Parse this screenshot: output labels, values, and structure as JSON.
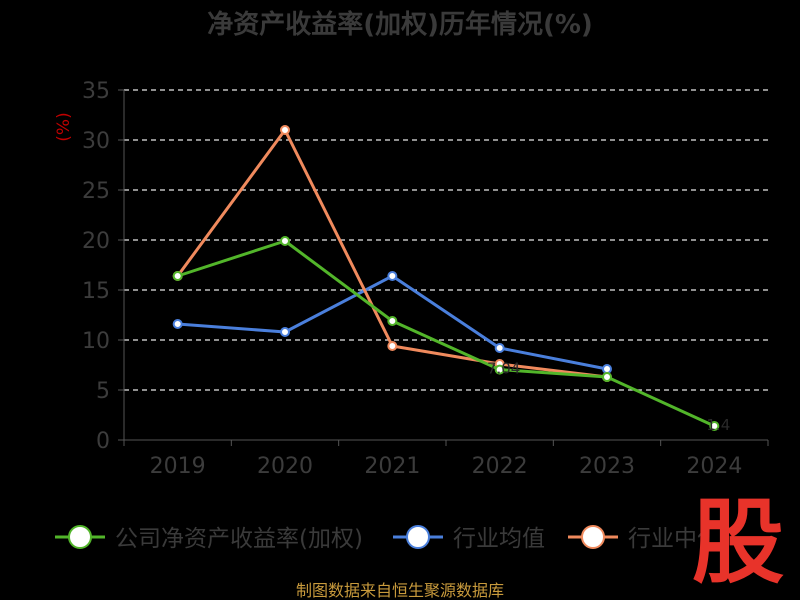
{
  "chart_data": {
    "type": "line",
    "title": "净资产收益率(加权)历年情况(%)",
    "ylabel": "(%)",
    "categories": [
      "2019",
      "2020",
      "2021",
      "2022",
      "2023",
      "2024"
    ],
    "ylim": [
      0,
      35
    ],
    "yticks": [
      0,
      5,
      10,
      15,
      20,
      25,
      30,
      35
    ],
    "grid": true,
    "legend_position": "bottom",
    "series": [
      {
        "name": "公司净资产收益率(加权)",
        "color": "#52b52a",
        "values": [
          16.4,
          19.9,
          11.9,
          7.04,
          6.3,
          1.4
        ]
      },
      {
        "name": "行业均值",
        "color": "#4a7fdc",
        "values": [
          11.6,
          10.8,
          16.4,
          9.2,
          7.1,
          null
        ]
      },
      {
        "name": "行业中位数",
        "color": "#f08a5d",
        "values": [
          16.4,
          31.0,
          9.4,
          7.6,
          6.3,
          null
        ]
      }
    ],
    "data_labels": [
      {
        "series": 0,
        "index": 3,
        "text": "7.04"
      },
      {
        "series": 0,
        "index": 5,
        "text": "1.4"
      }
    ]
  },
  "legend": {
    "items": [
      {
        "label": "公司净资产收益率(加权)",
        "color": "#52b52a"
      },
      {
        "label": "行业均值",
        "color": "#4a7fdc"
      },
      {
        "label": "行业中位数",
        "color": "#f08a5d"
      }
    ]
  },
  "footer": {
    "source": "制图数据来自恒生聚源数据库"
  },
  "logo": {
    "text": "股"
  }
}
